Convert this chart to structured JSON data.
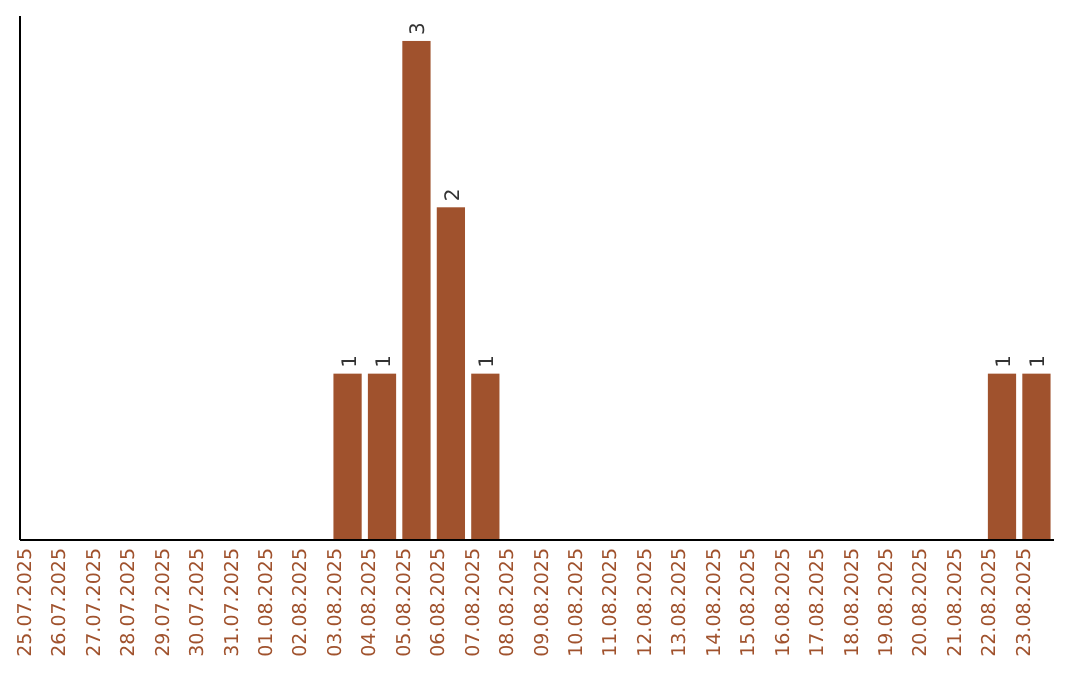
{
  "chart_data": {
    "type": "bar",
    "categories": [
      "25.07.2025",
      "26.07.2025",
      "27.07.2025",
      "28.07.2025",
      "29.07.2025",
      "30.07.2025",
      "31.07.2025",
      "01.08.2025",
      "02.08.2025",
      "03.08.2025",
      "04.08.2025",
      "05.08.2025",
      "06.08.2025",
      "07.08.2025",
      "08.08.2025",
      "09.08.2025",
      "10.08.2025",
      "11.08.2025",
      "12.08.2025",
      "13.08.2025",
      "14.08.2025",
      "15.08.2025",
      "16.08.2025",
      "17.08.2025",
      "18.08.2025",
      "19.08.2025",
      "20.08.2025",
      "21.08.2025",
      "22.08.2025",
      "23.08.2025"
    ],
    "values": [
      0,
      0,
      0,
      0,
      0,
      0,
      0,
      0,
      0,
      1,
      1,
      3,
      2,
      1,
      0,
      0,
      0,
      0,
      0,
      0,
      0,
      0,
      0,
      0,
      0,
      0,
      0,
      0,
      1,
      1
    ],
    "value_labels": [
      null,
      null,
      null,
      null,
      null,
      null,
      null,
      null,
      null,
      "1",
      "1",
      "3",
      "2",
      "1",
      null,
      null,
      null,
      null,
      null,
      null,
      null,
      null,
      null,
      null,
      null,
      null,
      null,
      null,
      "1",
      "1"
    ],
    "color": "#a0522d",
    "ylim": [
      0,
      3.15
    ],
    "tick_labels": "x"
  }
}
